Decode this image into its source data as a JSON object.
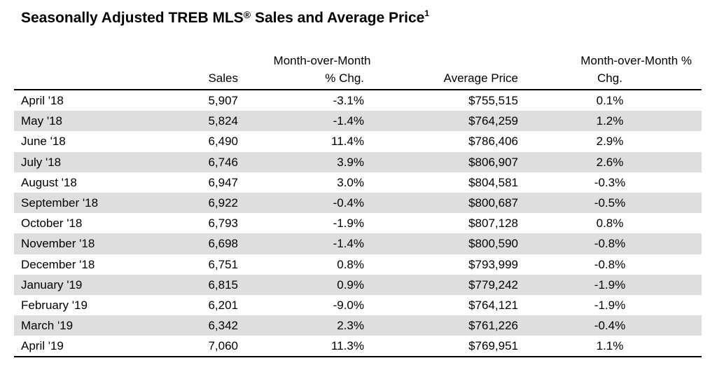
{
  "title": {
    "text_before": "Seasonally Adjusted TREB MLS",
    "registered_mark": "®",
    "text_after": " Sales and Average Price",
    "footnote": "1"
  },
  "table": {
    "headers": {
      "month": "",
      "sales": "Sales",
      "mom_line1": "Month-over-Month",
      "mom_line2": "% Chg.",
      "avg_price": "Average Price",
      "mom_pct_line1": "Month-over-Month %",
      "mom_pct_line2": "Chg."
    },
    "rows": [
      {
        "month": "April '18",
        "sales": "5,907",
        "sales_chg": "-3.1%",
        "avg_price": "$755,515",
        "price_chg": "0.1%"
      },
      {
        "month": "May '18",
        "sales": "5,824",
        "sales_chg": "-1.4%",
        "avg_price": "$764,259",
        "price_chg": "1.2%"
      },
      {
        "month": "June '18",
        "sales": "6,490",
        "sales_chg": "11.4%",
        "avg_price": "$786,406",
        "price_chg": "2.9%"
      },
      {
        "month": "July '18",
        "sales": "6,746",
        "sales_chg": "3.9%",
        "avg_price": "$806,907",
        "price_chg": "2.6%"
      },
      {
        "month": "August '18",
        "sales": "6,947",
        "sales_chg": "3.0%",
        "avg_price": "$804,581",
        "price_chg": "-0.3%"
      },
      {
        "month": "September '18",
        "sales": "6,922",
        "sales_chg": "-0.4%",
        "avg_price": "$800,687",
        "price_chg": "-0.5%"
      },
      {
        "month": "October '18",
        "sales": "6,793",
        "sales_chg": "-1.9%",
        "avg_price": "$807,128",
        "price_chg": "0.8%"
      },
      {
        "month": "November '18",
        "sales": "6,698",
        "sales_chg": "-1.4%",
        "avg_price": "$800,590",
        "price_chg": "-0.8%"
      },
      {
        "month": "December '18",
        "sales": "6,751",
        "sales_chg": "0.8%",
        "avg_price": "$793,999",
        "price_chg": "-0.8%"
      },
      {
        "month": "January '19",
        "sales": "6,815",
        "sales_chg": "0.9%",
        "avg_price": "$779,242",
        "price_chg": "-1.9%"
      },
      {
        "month": "February '19",
        "sales": "6,201",
        "sales_chg": "-9.0%",
        "avg_price": "$764,121",
        "price_chg": "-1.9%"
      },
      {
        "month": "March '19",
        "sales": "6,342",
        "sales_chg": "2.3%",
        "avg_price": "$761,226",
        "price_chg": "-0.4%"
      },
      {
        "month": "April '19",
        "sales": "7,060",
        "sales_chg": "11.3%",
        "avg_price": "$769,951",
        "price_chg": "1.1%"
      }
    ]
  },
  "colors": {
    "row_shade": "#dedede",
    "rule": "#000000",
    "text": "#000000"
  }
}
